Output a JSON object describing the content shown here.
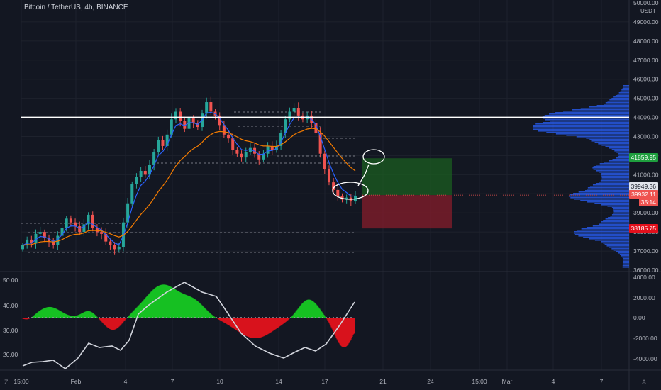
{
  "title": "Bitcoin / TetherUS, 4h, BINANCE",
  "currency": "USDT",
  "price_axis": [
    "50000.00",
    "49000.00",
    "48000.00",
    "47000.00",
    "46000.00",
    "45000.00",
    "44000.00",
    "43000.00",
    "42000.00",
    "41000.00",
    "40000.00",
    "39000.00",
    "38000.00",
    "37000.00",
    "36000.00"
  ],
  "osc_left_axis": [
    "50.00",
    "40.00",
    "30.00",
    "20.00"
  ],
  "osc_right_axis": [
    "4000.00",
    "2000.00",
    "0.00",
    "-2000.00",
    "-4000.00"
  ],
  "time_axis": [
    "15:00",
    "Feb",
    "4",
    "7",
    "10",
    "14",
    "17",
    "21",
    "24",
    "15:00",
    "Mar",
    "4",
    "7"
  ],
  "tags": {
    "target": "41859.95",
    "last_close": "39949.36",
    "current": "39932.11",
    "countdown": "35:14",
    "stop": "38185.75"
  },
  "corners": {
    "left": "Z",
    "right": "A"
  },
  "colors": {
    "up": "#26a69a",
    "down": "#ef5350",
    "resistance": "#ffffff",
    "ema_fast": "#2962ff",
    "ema_slow": "#f57c00",
    "profit": "#1b5e20",
    "loss": "#7f1d2a"
  },
  "chart_data": {
    "type": "candlestick",
    "symbol": "BTCUSDT",
    "interval": "4h",
    "y_range": [
      36000,
      50000
    ],
    "resistance_level": 44000,
    "close_series": [
      37300,
      37600,
      37400,
      37900,
      38000,
      37700,
      37500,
      37300,
      37800,
      38200,
      38700,
      38500,
      38300,
      38000,
      38400,
      38900,
      38200,
      38000,
      37900,
      37500,
      37300,
      37100,
      37200,
      38500,
      39500,
      40500,
      40900,
      41200,
      41000,
      41500,
      42200,
      42800,
      42500,
      43100,
      43900,
      44300,
      43800,
      43400,
      44000,
      43700,
      43500,
      44200,
      44800,
      44300,
      44100,
      43600,
      43100,
      42900,
      42300,
      42100,
      41900,
      42200,
      42400,
      42100,
      41800,
      42100,
      42500,
      42300,
      42500,
      43200,
      43900,
      44300,
      44500,
      44100,
      43900,
      44100,
      43700,
      43200,
      42100,
      41300,
      40600,
      40200,
      39900,
      39700,
      39800,
      39600,
      39900
    ],
    "position": {
      "entry": 39932.11,
      "target": 41859.95,
      "stop": 38185.75
    },
    "oscillator": {
      "left_range": [
        15,
        55
      ],
      "right_range": [
        -5000,
        5000
      ]
    }
  }
}
